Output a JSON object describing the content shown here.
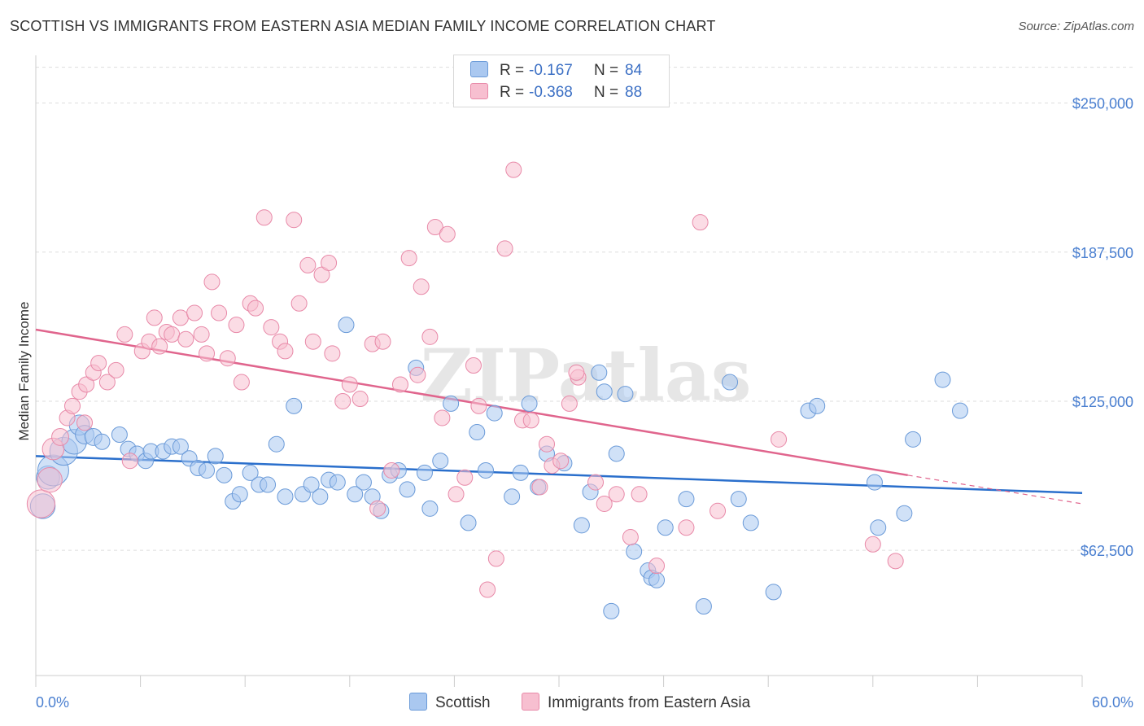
{
  "title": "SCOTTISH VS IMMIGRANTS FROM EASTERN ASIA MEDIAN FAMILY INCOME CORRELATION CHART",
  "source": "Source: ZipAtlas.com",
  "watermark": "ZIPatlas",
  "legend": {
    "rows": [
      {
        "r_label": "R =",
        "r_value": "-0.167",
        "n_label": "N =",
        "n_value": "84",
        "color": "#aac8f0",
        "border": "#6a9ad8"
      },
      {
        "r_label": "R =",
        "r_value": "-0.368",
        "n_label": "N =",
        "n_value": "88",
        "color": "#f7bfd0",
        "border": "#e889a8"
      }
    ]
  },
  "bottom_legend": [
    {
      "label": "Scottish",
      "color": "#aac8f0",
      "border": "#6a9ad8"
    },
    {
      "label": "Immigrants from Eastern Asia",
      "color": "#f7bfd0",
      "border": "#e889a8"
    }
  ],
  "chart_data": {
    "type": "scatter",
    "title": "SCOTTISH VS IMMIGRANTS FROM EASTERN ASIA MEDIAN FAMILY INCOME CORRELATION CHART",
    "xlabel": "",
    "ylabel": "Median Family Income",
    "xlim": [
      0,
      60
    ],
    "ylim": [
      10000,
      270000
    ],
    "x_tick_labels": [
      "0.0%",
      "60.0%"
    ],
    "y_ticks": [
      62500,
      125000,
      187500,
      250000
    ],
    "y_tick_labels": [
      "$62,500",
      "$125,000",
      "$187,500",
      "$250,000"
    ],
    "grid": true,
    "legend_position": "top-center",
    "series": [
      {
        "name": "Scottish",
        "color": "#6a9ad8",
        "fill": "#aac8f0",
        "trend": {
          "x": [
            0,
            60
          ],
          "y": [
            102000,
            86500
          ],
          "color": "#2a6fcc"
        },
        "points": [
          [
            0.4,
            81000,
            1.6
          ],
          [
            0.7,
            93000,
            1.5
          ],
          [
            1.0,
            96000,
            2.0
          ],
          [
            1.6,
            104000,
            1.8
          ],
          [
            2.2,
            108000,
            1.6
          ],
          [
            2.5,
            115000,
            1.3
          ],
          [
            2.8,
            111000,
            1.2
          ],
          [
            3.3,
            110000,
            1.1
          ],
          [
            3.8,
            108000,
            1.0
          ],
          [
            4.8,
            111000,
            1.0
          ],
          [
            5.3,
            105000,
            1.0
          ],
          [
            5.8,
            103000,
            1.0
          ],
          [
            6.3,
            100000,
            1.0
          ],
          [
            6.6,
            104000,
            1.0
          ],
          [
            7.3,
            104000,
            1.0
          ],
          [
            7.8,
            106000,
            1.0
          ],
          [
            8.3,
            106000,
            1.0
          ],
          [
            8.8,
            101000,
            1.0
          ],
          [
            9.3,
            97000,
            1.0
          ],
          [
            9.8,
            96000,
            1.0
          ],
          [
            10.3,
            102000,
            1.0
          ],
          [
            10.8,
            94000,
            1.0
          ],
          [
            11.3,
            83000,
            1.0
          ],
          [
            11.7,
            86000,
            1.0
          ],
          [
            12.3,
            95000,
            1.0
          ],
          [
            12.8,
            90000,
            1.0
          ],
          [
            13.3,
            90000,
            1.0
          ],
          [
            13.8,
            107000,
            1.0
          ],
          [
            14.3,
            85000,
            1.0
          ],
          [
            14.8,
            123000,
            1.0
          ],
          [
            15.3,
            86000,
            1.0
          ],
          [
            15.8,
            90000,
            1.0
          ],
          [
            16.3,
            85000,
            1.0
          ],
          [
            16.8,
            92000,
            1.0
          ],
          [
            17.3,
            91000,
            1.0
          ],
          [
            17.8,
            157000,
            1.0
          ],
          [
            18.3,
            86000,
            1.0
          ],
          [
            18.8,
            91000,
            1.0
          ],
          [
            19.3,
            85000,
            1.0
          ],
          [
            19.8,
            79000,
            1.0
          ],
          [
            20.3,
            94000,
            1.0
          ],
          [
            20.8,
            96000,
            1.0
          ],
          [
            21.3,
            88000,
            1.0
          ],
          [
            21.8,
            139000,
            1.0
          ],
          [
            22.3,
            95000,
            1.0
          ],
          [
            22.6,
            80000,
            1.0
          ],
          [
            23.2,
            100000,
            1.0
          ],
          [
            23.8,
            124000,
            1.0
          ],
          [
            24.8,
            74000,
            1.0
          ],
          [
            25.3,
            112000,
            1.0
          ],
          [
            25.8,
            96000,
            1.0
          ],
          [
            26.3,
            120000,
            1.0
          ],
          [
            27.3,
            85000,
            1.0
          ],
          [
            27.8,
            95000,
            1.0
          ],
          [
            28.3,
            124000,
            1.0
          ],
          [
            28.8,
            89000,
            1.0
          ],
          [
            29.3,
            103000,
            1.0
          ],
          [
            30.3,
            99000,
            1.0
          ],
          [
            31.3,
            73000,
            1.0
          ],
          [
            31.8,
            87000,
            1.0
          ],
          [
            32.3,
            137000,
            1.0
          ],
          [
            32.6,
            129000,
            1.0
          ],
          [
            33.3,
            103000,
            1.0
          ],
          [
            33.8,
            128000,
            1.0
          ],
          [
            34.3,
            62000,
            1.0
          ],
          [
            35.1,
            54000,
            1.0
          ],
          [
            35.3,
            51000,
            1.0
          ],
          [
            35.6,
            50000,
            1.0
          ],
          [
            36.1,
            72000,
            1.0
          ],
          [
            37.3,
            84000,
            1.0
          ],
          [
            38.3,
            39000,
            1.0
          ],
          [
            39.8,
            133000,
            1.0
          ],
          [
            40.3,
            84000,
            1.0
          ],
          [
            41.0,
            74000,
            1.0
          ],
          [
            42.3,
            45000,
            1.0
          ],
          [
            44.3,
            121000,
            1.0
          ],
          [
            44.8,
            123000,
            1.0
          ],
          [
            48.1,
            91000,
            1.0
          ],
          [
            48.3,
            72000,
            1.0
          ],
          [
            49.8,
            78000,
            1.0
          ],
          [
            50.3,
            109000,
            1.0
          ],
          [
            52.0,
            134000,
            1.0
          ],
          [
            53.0,
            121000,
            1.0
          ],
          [
            33.0,
            37000,
            1.0
          ]
        ]
      },
      {
        "name": "Immigrants from Eastern Asia",
        "color": "#e889a8",
        "fill": "#f7bfd0",
        "trend": {
          "x": [
            0,
            50
          ],
          "y": [
            155000,
            94000
          ],
          "color": "#e0658d",
          "dashed_to": [
            60,
            82000
          ]
        },
        "points": [
          [
            0.3,
            82000,
            1.8
          ],
          [
            0.8,
            92000,
            1.6
          ],
          [
            1.0,
            105000,
            1.4
          ],
          [
            1.4,
            110000,
            1.1
          ],
          [
            1.8,
            118000,
            1.0
          ],
          [
            2.1,
            123000,
            1.0
          ],
          [
            2.5,
            129000,
            1.0
          ],
          [
            2.8,
            116000,
            1.0
          ],
          [
            2.9,
            132000,
            1.0
          ],
          [
            3.3,
            137000,
            1.0
          ],
          [
            3.6,
            141000,
            1.0
          ],
          [
            4.1,
            133000,
            1.0
          ],
          [
            4.6,
            138000,
            1.0
          ],
          [
            5.1,
            153000,
            1.0
          ],
          [
            5.4,
            100000,
            1.0
          ],
          [
            6.1,
            146000,
            1.0
          ],
          [
            6.5,
            150000,
            1.0
          ],
          [
            6.8,
            160000,
            1.0
          ],
          [
            7.1,
            148000,
            1.0
          ],
          [
            7.5,
            154000,
            1.0
          ],
          [
            7.8,
            153000,
            1.0
          ],
          [
            8.3,
            160000,
            1.0
          ],
          [
            8.6,
            151000,
            1.0
          ],
          [
            9.1,
            162000,
            1.0
          ],
          [
            9.5,
            153000,
            1.0
          ],
          [
            9.8,
            145000,
            1.0
          ],
          [
            10.1,
            175000,
            1.0
          ],
          [
            10.5,
            162000,
            1.0
          ],
          [
            11.0,
            143000,
            1.0
          ],
          [
            11.5,
            157000,
            1.0
          ],
          [
            11.8,
            133000,
            1.0
          ],
          [
            12.3,
            166000,
            1.0
          ],
          [
            12.6,
            164000,
            1.0
          ],
          [
            13.1,
            202000,
            1.0
          ],
          [
            13.5,
            156000,
            1.0
          ],
          [
            14.0,
            150000,
            1.0
          ],
          [
            14.3,
            146000,
            1.0
          ],
          [
            14.8,
            201000,
            1.0
          ],
          [
            15.1,
            166000,
            1.0
          ],
          [
            15.6,
            182000,
            1.0
          ],
          [
            15.9,
            150000,
            1.0
          ],
          [
            16.4,
            178000,
            1.0
          ],
          [
            16.8,
            183000,
            1.0
          ],
          [
            17.0,
            145000,
            1.0
          ],
          [
            17.6,
            125000,
            1.0
          ],
          [
            18.0,
            132000,
            1.0
          ],
          [
            18.6,
            126000,
            1.0
          ],
          [
            19.3,
            149000,
            1.0
          ],
          [
            19.6,
            80000,
            1.0
          ],
          [
            19.9,
            150000,
            1.0
          ],
          [
            20.4,
            96000,
            1.0
          ],
          [
            20.9,
            132000,
            1.0
          ],
          [
            21.4,
            185000,
            1.0
          ],
          [
            21.9,
            136000,
            1.0
          ],
          [
            22.1,
            173000,
            1.0
          ],
          [
            22.6,
            152000,
            1.0
          ],
          [
            22.9,
            198000,
            1.0
          ],
          [
            23.3,
            118000,
            1.0
          ],
          [
            23.6,
            195000,
            1.0
          ],
          [
            24.1,
            86000,
            1.0
          ],
          [
            24.6,
            93000,
            1.0
          ],
          [
            25.1,
            140000,
            1.0
          ],
          [
            25.4,
            123000,
            1.0
          ],
          [
            25.9,
            46000,
            1.0
          ],
          [
            26.4,
            59000,
            1.0
          ],
          [
            26.9,
            189000,
            1.0
          ],
          [
            27.4,
            222000,
            1.0
          ],
          [
            27.9,
            117000,
            1.0
          ],
          [
            28.4,
            117000,
            1.0
          ],
          [
            28.9,
            89000,
            1.0
          ],
          [
            29.3,
            107000,
            1.0
          ],
          [
            29.6,
            98000,
            1.0
          ],
          [
            30.1,
            100000,
            1.0
          ],
          [
            30.6,
            124000,
            1.0
          ],
          [
            31.1,
            135000,
            1.0
          ],
          [
            32.1,
            91000,
            1.0
          ],
          [
            32.6,
            82000,
            1.0
          ],
          [
            33.3,
            86000,
            1.0
          ],
          [
            34.1,
            68000,
            1.0
          ],
          [
            34.6,
            86000,
            1.0
          ],
          [
            35.6,
            56000,
            1.0
          ],
          [
            37.3,
            72000,
            1.0
          ],
          [
            38.1,
            200000,
            1.0
          ],
          [
            39.1,
            79000,
            1.0
          ],
          [
            42.6,
            109000,
            1.0
          ],
          [
            48.0,
            65000,
            1.0
          ],
          [
            49.3,
            58000,
            1.0
          ],
          [
            31.0,
            137000,
            1.0
          ]
        ]
      }
    ]
  }
}
